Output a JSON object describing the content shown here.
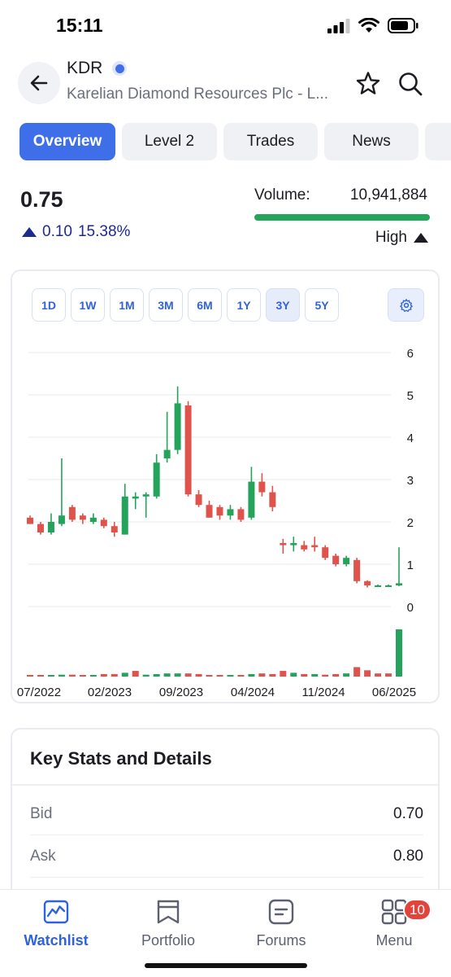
{
  "status_bar": {
    "time": "15:11"
  },
  "header": {
    "ticker": "KDR",
    "company": "Karelian Diamond Resources Plc - L...",
    "icons": [
      "back-arrow-icon",
      "star-icon",
      "search-icon"
    ]
  },
  "tabs": [
    {
      "label": "Overview",
      "active": true
    },
    {
      "label": "Level 2",
      "active": false
    },
    {
      "label": "Trades",
      "active": false
    },
    {
      "label": "News",
      "active": false
    },
    {
      "label": "",
      "active": false
    }
  ],
  "quote": {
    "price": "0.75",
    "change": "0.10",
    "change_pct": "15.38%",
    "volume_label": "Volume:",
    "volume_value": "10,941,884",
    "volume_level": "High",
    "up_color": "#1d2b8c",
    "volume_bar_color": "#25a55a"
  },
  "ranges": [
    {
      "label": "1D",
      "active": false
    },
    {
      "label": "1W",
      "active": false
    },
    {
      "label": "1M",
      "active": false
    },
    {
      "label": "3M",
      "active": false
    },
    {
      "label": "6M",
      "active": false
    },
    {
      "label": "1Y",
      "active": false
    },
    {
      "label": "3Y",
      "active": true
    },
    {
      "label": "5Y",
      "active": false
    }
  ],
  "chart_data": {
    "type": "candlestick",
    "y_ticks": [
      "6",
      "5",
      "4",
      "3",
      "2",
      "1",
      "0"
    ],
    "ylim": [
      0,
      6
    ],
    "x_ticks": [
      "07/2022",
      "02/2023",
      "09/2023",
      "04/2024",
      "11/2024",
      "06/2025"
    ],
    "grid": true,
    "up_color": "#24a35a",
    "down_color": "#e0534d",
    "candles": [
      {
        "o": 2.1,
        "h": 2.15,
        "l": 1.95,
        "c": 1.95
      },
      {
        "o": 1.95,
        "h": 2.0,
        "l": 1.7,
        "c": 1.75
      },
      {
        "o": 1.75,
        "h": 2.2,
        "l": 1.7,
        "c": 2.0
      },
      {
        "o": 1.95,
        "h": 3.5,
        "l": 1.9,
        "c": 2.15
      },
      {
        "o": 2.35,
        "h": 2.4,
        "l": 2.0,
        "c": 2.05
      },
      {
        "o": 2.15,
        "h": 2.2,
        "l": 1.95,
        "c": 2.05
      },
      {
        "o": 2.0,
        "h": 2.2,
        "l": 1.95,
        "c": 2.1
      },
      {
        "o": 2.05,
        "h": 2.1,
        "l": 1.85,
        "c": 1.9
      },
      {
        "o": 1.9,
        "h": 2.0,
        "l": 1.65,
        "c": 1.75
      },
      {
        "o": 1.7,
        "h": 2.9,
        "l": 1.7,
        "c": 2.6
      },
      {
        "o": 2.55,
        "h": 2.7,
        "l": 2.3,
        "c": 2.6
      },
      {
        "o": 2.6,
        "h": 2.7,
        "l": 2.1,
        "c": 2.65
      },
      {
        "o": 2.6,
        "h": 3.6,
        "l": 2.55,
        "c": 3.4
      },
      {
        "o": 3.5,
        "h": 4.6,
        "l": 3.4,
        "c": 3.7
      },
      {
        "o": 3.7,
        "h": 5.2,
        "l": 3.6,
        "c": 4.8
      },
      {
        "o": 4.75,
        "h": 4.85,
        "l": 2.6,
        "c": 2.65
      },
      {
        "o": 2.65,
        "h": 2.75,
        "l": 2.35,
        "c": 2.4
      },
      {
        "o": 2.4,
        "h": 2.5,
        "l": 2.1,
        "c": 2.1
      },
      {
        "o": 2.35,
        "h": 2.4,
        "l": 2.05,
        "c": 2.15
      },
      {
        "o": 2.15,
        "h": 2.4,
        "l": 2.05,
        "c": 2.3
      },
      {
        "o": 2.3,
        "h": 2.35,
        "l": 2.0,
        "c": 2.05
      },
      {
        "o": 2.1,
        "h": 3.3,
        "l": 2.05,
        "c": 2.95
      },
      {
        "o": 2.95,
        "h": 3.15,
        "l": 2.6,
        "c": 2.7
      },
      {
        "o": 2.7,
        "h": 2.85,
        "l": 2.25,
        "c": 2.35
      },
      {
        "o": 1.5,
        "h": 1.6,
        "l": 1.25,
        "c": 1.45
      },
      {
        "o": 1.45,
        "h": 1.65,
        "l": 1.3,
        "c": 1.5
      },
      {
        "o": 1.45,
        "h": 1.55,
        "l": 1.3,
        "c": 1.35
      },
      {
        "o": 1.45,
        "h": 1.65,
        "l": 1.3,
        "c": 1.4
      },
      {
        "o": 1.4,
        "h": 1.45,
        "l": 1.1,
        "c": 1.15
      },
      {
        "o": 1.2,
        "h": 1.25,
        "l": 0.95,
        "c": 1.0
      },
      {
        "o": 1.0,
        "h": 1.2,
        "l": 0.95,
        "c": 1.15
      },
      {
        "o": 1.1,
        "h": 1.15,
        "l": 0.55,
        "c": 0.6
      },
      {
        "o": 0.6,
        "h": 0.62,
        "l": 0.45,
        "c": 0.5
      },
      {
        "o": 0.5,
        "h": 0.52,
        "l": 0.47,
        "c": 0.5
      },
      {
        "o": 0.5,
        "h": 0.52,
        "l": 0.47,
        "c": 0.5
      },
      {
        "o": 0.5,
        "h": 1.4,
        "l": 0.48,
        "c": 0.55
      }
    ],
    "volumes": [
      {
        "v": 2,
        "up": false
      },
      {
        "v": 2,
        "up": false
      },
      {
        "v": 2,
        "up": true
      },
      {
        "v": 3,
        "up": true
      },
      {
        "v": 3,
        "up": false
      },
      {
        "v": 2,
        "up": false
      },
      {
        "v": 2,
        "up": true
      },
      {
        "v": 4,
        "up": false
      },
      {
        "v": 4,
        "up": false
      },
      {
        "v": 6,
        "up": true
      },
      {
        "v": 9,
        "up": false
      },
      {
        "v": 3,
        "up": true
      },
      {
        "v": 4,
        "up": true
      },
      {
        "v": 5,
        "up": true
      },
      {
        "v": 5,
        "up": true
      },
      {
        "v": 5,
        "up": false
      },
      {
        "v": 4,
        "up": false
      },
      {
        "v": 2,
        "up": false
      },
      {
        "v": 2,
        "up": false
      },
      {
        "v": 2,
        "up": true
      },
      {
        "v": 2,
        "up": false
      },
      {
        "v": 4,
        "up": true
      },
      {
        "v": 5,
        "up": false
      },
      {
        "v": 4,
        "up": false
      },
      {
        "v": 9,
        "up": false
      },
      {
        "v": 6,
        "up": true
      },
      {
        "v": 4,
        "up": false
      },
      {
        "v": 4,
        "up": true
      },
      {
        "v": 3,
        "up": false
      },
      {
        "v": 4,
        "up": false
      },
      {
        "v": 5,
        "up": true
      },
      {
        "v": 15,
        "up": false
      },
      {
        "v": 10,
        "up": false
      },
      {
        "v": 5,
        "up": false
      },
      {
        "v": 5,
        "up": false
      },
      {
        "v": 75,
        "up": true
      }
    ]
  },
  "stats": {
    "title": "Key Stats and Details",
    "rows": [
      {
        "label": "Bid",
        "value": "0.70"
      },
      {
        "label": "Ask",
        "value": "0.80"
      }
    ]
  },
  "bottom_nav": [
    {
      "label": "Watchlist",
      "icon": "chart-line-icon",
      "active": true,
      "badge": ""
    },
    {
      "label": "Portfolio",
      "icon": "bookmark-icon",
      "active": false,
      "badge": ""
    },
    {
      "label": "Forums",
      "icon": "forum-icon",
      "active": false,
      "badge": ""
    },
    {
      "label": "Menu",
      "icon": "menu-grid-icon",
      "active": false,
      "badge": "10"
    }
  ]
}
